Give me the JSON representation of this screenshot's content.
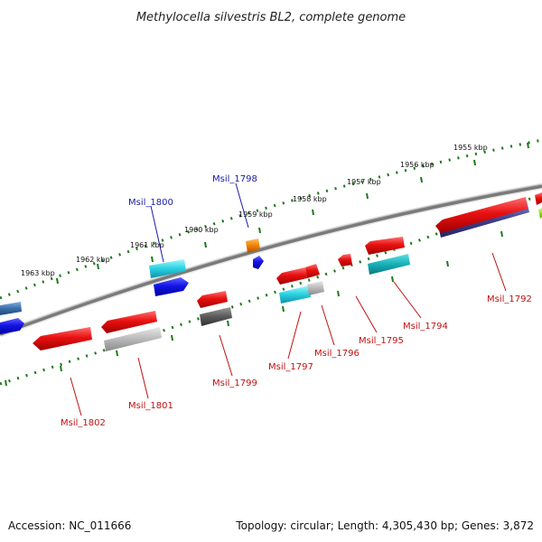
{
  "title": "Methylocella silvestris BL2, complete genome",
  "footer": {
    "accession": "Accession: NC_011666",
    "summary": "Topology: circular; Length: 4,305,430 bp; Genes: 3,872"
  },
  "ruler_labels": [
    "1963 kbp",
    "1962 kbp",
    "1961 kbp",
    "1960 kbp",
    "1959 kbp",
    "1958 kbp",
    "1957 kbp",
    "1956 kbp",
    "1955 kbp"
  ],
  "gene_labels": {
    "msil_1798": "Msil_1798",
    "msil_1800": "Msil_1800",
    "msil_1802": "Msil_1802",
    "msil_1801": "Msil_1801",
    "msil_1799": "Msil_1799",
    "msil_1797": "Msil_1797",
    "msil_1796": "Msil_1796",
    "msil_1795": "Msil_1795",
    "msil_1794": "Msil_1794",
    "msil_1792": "Msil_1792"
  },
  "colors": {
    "backbone": "#7a7a7a",
    "ticks": "#1a7a1a",
    "red": "#e01010",
    "blue": "#1010e0",
    "cyan": "#20c8d8",
    "navy": "#3c3c8c",
    "grey": "#b8b8b8",
    "darkgrey": "#5a5a5a",
    "orange": "#f08000",
    "steel": "#3a6ea8",
    "lime": "#90e020"
  }
}
